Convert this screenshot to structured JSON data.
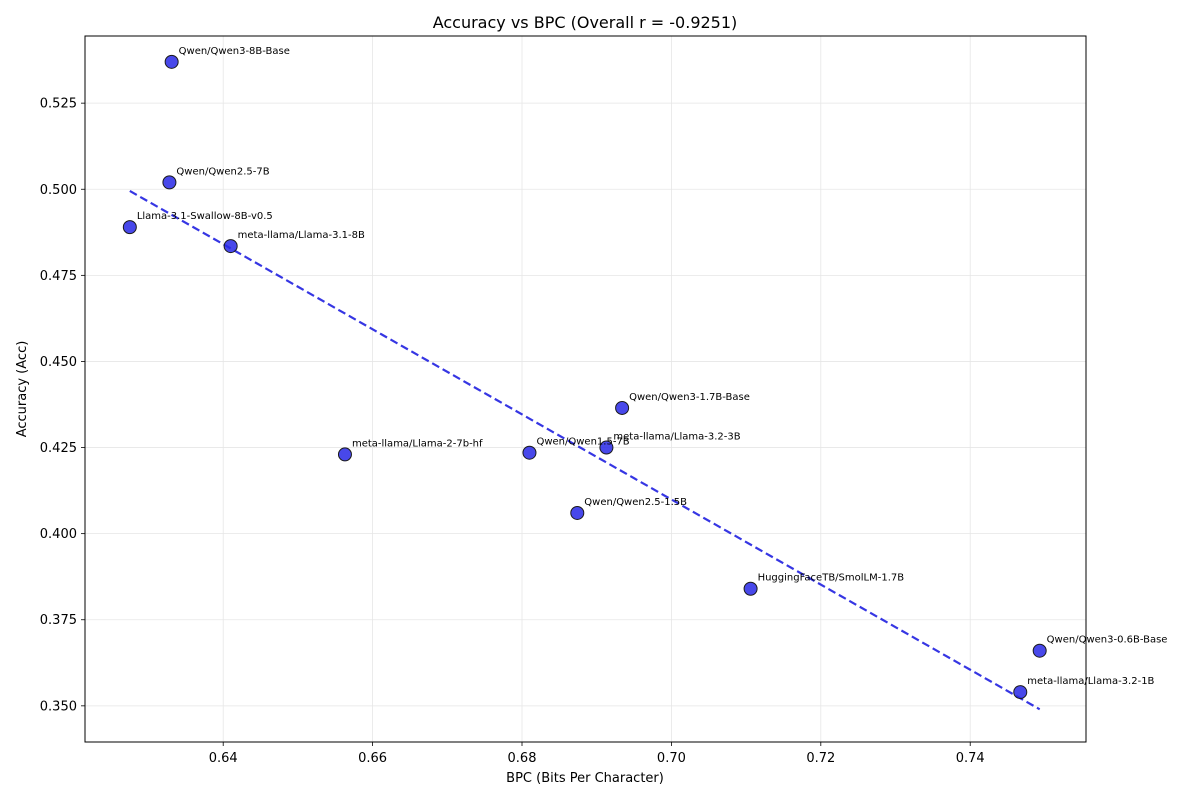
{
  "chart_data": {
    "type": "scatter",
    "title": "Accuracy vs BPC (Overall r = -0.9251)",
    "xlabel": "BPC (Bits Per Character)",
    "ylabel": "Accuracy (Acc)",
    "xlim": [
      0.6215,
      0.7555
    ],
    "ylim": [
      0.3395,
      0.5445
    ],
    "xticks": [
      0.64,
      0.66,
      0.68,
      0.7,
      0.72,
      0.74
    ],
    "xtick_labels": [
      "0.64",
      "0.66",
      "0.68",
      "0.70",
      "0.72",
      "0.74"
    ],
    "yticks": [
      0.35,
      0.375,
      0.4,
      0.425,
      0.45,
      0.475,
      0.5,
      0.525
    ],
    "ytick_labels": [
      "0.350",
      "0.375",
      "0.400",
      "0.425",
      "0.450",
      "0.475",
      "0.500",
      "0.525"
    ],
    "grid": true,
    "point_color": "#2828e6",
    "trend_color": "#2020e0",
    "points": [
      {
        "label": "Qwen/Qwen3-8B-Base",
        "x": 0.6331,
        "y": 0.537
      },
      {
        "label": "Qwen/Qwen2.5-7B",
        "x": 0.6328,
        "y": 0.502
      },
      {
        "label": "Llama-3.1-Swallow-8B-v0.5",
        "x": 0.6275,
        "y": 0.489
      },
      {
        "label": "meta-llama/Llama-3.1-8B",
        "x": 0.641,
        "y": 0.4835
      },
      {
        "label": "meta-llama/Llama-2-7b-hf",
        "x": 0.6563,
        "y": 0.423
      },
      {
        "label": "Qwen/Qwen1.5-7B",
        "x": 0.681,
        "y": 0.4235
      },
      {
        "label": "Qwen/Qwen3-1.7B-Base",
        "x": 0.6934,
        "y": 0.4365
      },
      {
        "label": "meta-llama/Llama-3.2-3B",
        "x": 0.6913,
        "y": 0.425
      },
      {
        "label": "Qwen/Qwen2.5-1.5B",
        "x": 0.6874,
        "y": 0.406
      },
      {
        "label": "HuggingFaceTB/SmolLM-1.7B",
        "x": 0.7106,
        "y": 0.384
      },
      {
        "label": "Qwen/Qwen3-0.6B-Base",
        "x": 0.7493,
        "y": 0.366
      },
      {
        "label": "meta-llama/Llama-3.2-1B",
        "x": 0.7467,
        "y": 0.354
      }
    ],
    "trendline": {
      "x": [
        0.6275,
        0.7493
      ],
      "y": [
        0.4995,
        0.349
      ]
    }
  }
}
